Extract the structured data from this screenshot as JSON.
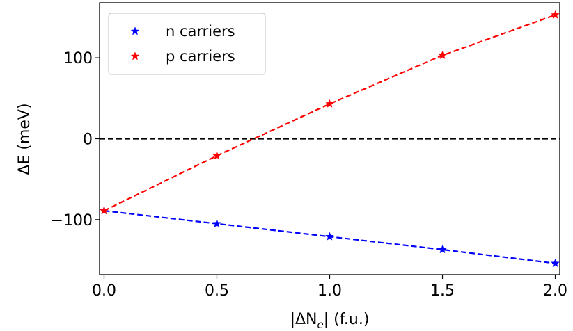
{
  "chart_data": {
    "type": "line",
    "xlabel": "|ΔNₑ| (f.u.)",
    "ylabel": "ΔE (meV)",
    "xlim": [
      -0.02,
      2.02
    ],
    "ylim": [
      -168,
      168
    ],
    "xticks": [
      0.0,
      0.5,
      1.0,
      1.5,
      2.0
    ],
    "xtick_labels": [
      "0.0",
      "0.5",
      "1.0",
      "1.5",
      "2.0"
    ],
    "yticks": [
      -100,
      0,
      100
    ],
    "ytick_labels": [
      "−100",
      "0",
      "100"
    ],
    "grid": false,
    "legend_position": "top-left",
    "reference_line": {
      "y": 0,
      "color": "#000000",
      "style": "dashed"
    },
    "series": [
      {
        "name": "n carriers",
        "color": "#0000ff",
        "marker": "star",
        "line_style": "dashed",
        "x": [
          0.0,
          0.5,
          1.0,
          1.5,
          2.0
        ],
        "y": [
          -89,
          -105,
          -121,
          -137,
          -154
        ]
      },
      {
        "name": "p carriers",
        "color": "#ff0000",
        "marker": "star",
        "line_style": "dashed",
        "x": [
          0.0,
          0.5,
          1.0,
          1.5,
          2.0
        ],
        "y": [
          -89,
          -21,
          43,
          103,
          153
        ]
      }
    ]
  }
}
